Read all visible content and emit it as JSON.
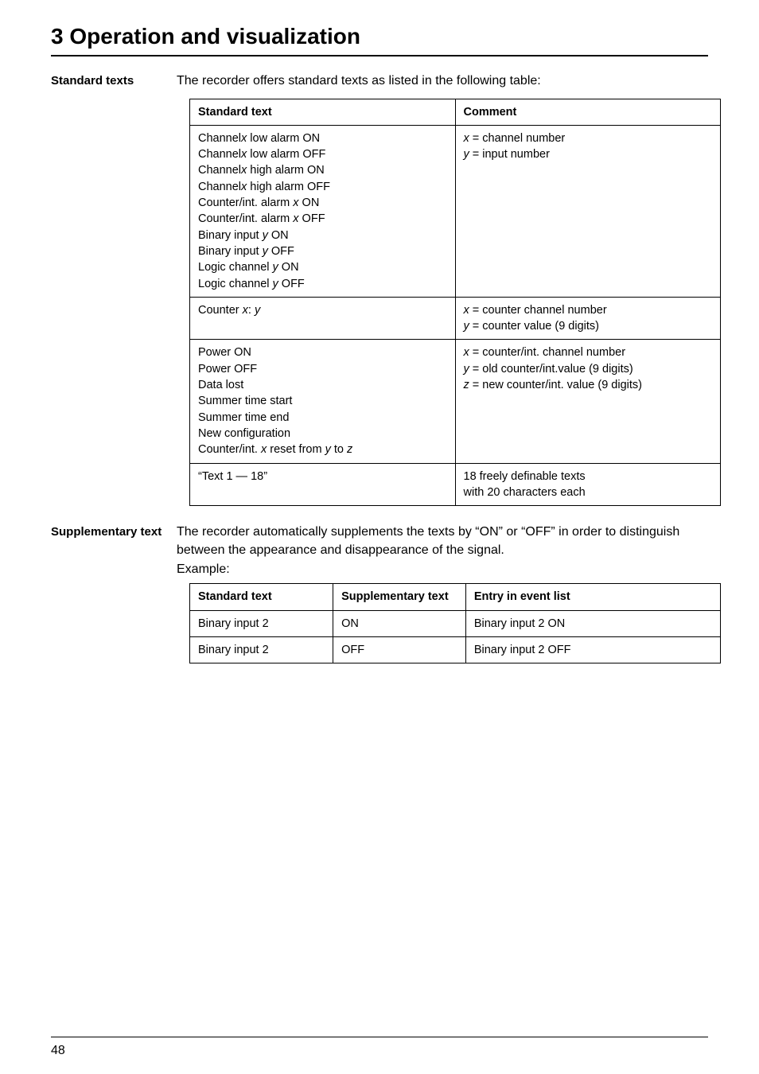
{
  "chapter_title": "3 Operation and visualization",
  "page_number": "48",
  "section1": {
    "side_label": "Standard texts",
    "intro": "The recorder offers standard texts as listed in the following table:",
    "table": {
      "headers": {
        "col1": "Standard text",
        "col2": "Comment"
      },
      "rows": [
        {
          "col1_lines": [
            {
              "prefix": "Channel",
              "var": "x",
              "suffix": " low alarm ON"
            },
            {
              "prefix": "Channel",
              "var": "x",
              "suffix": " low alarm OFF"
            },
            {
              "prefix": "Channel",
              "var": "x",
              "suffix": " high alarm ON"
            },
            {
              "prefix": "Channel",
              "var": "x",
              "suffix": " high alarm OFF"
            },
            {
              "prefix": "Counter/int. alarm ",
              "var": "x",
              "suffix": " ON"
            },
            {
              "prefix": "Counter/int. alarm ",
              "var": "x",
              "suffix": " OFF"
            },
            {
              "prefix": "Binary input ",
              "var": "y",
              "suffix": " ON"
            },
            {
              "prefix": "Binary input ",
              "var": "y",
              "suffix": " OFF"
            },
            {
              "prefix": "Logic channel ",
              "var": "y",
              "suffix": " ON"
            },
            {
              "prefix": "Logic channel ",
              "var": "y",
              "suffix": " OFF"
            }
          ],
          "col2_lines": [
            {
              "var": "x",
              "text": " = channel number"
            },
            {
              "var": "y",
              "text": " = input number"
            }
          ]
        },
        {
          "col1_lines": [
            {
              "prefix": "Counter ",
              "var": "x",
              "mid": ": ",
              "var2": "y"
            }
          ],
          "col2_lines": [
            {
              "var": "x",
              "text": " = counter channel number"
            },
            {
              "var": "y",
              "text": " = counter value (9 digits)"
            }
          ]
        },
        {
          "col1_lines": [
            {
              "prefix": "Power ON"
            },
            {
              "prefix": "Power OFF"
            },
            {
              "prefix": "Data lost"
            },
            {
              "prefix": "Summer time start"
            },
            {
              "prefix": "Summer time end"
            },
            {
              "prefix": "New configuration"
            },
            {
              "prefix": "Counter/int. ",
              "var": "x",
              "mid": " reset from ",
              "var2": "y",
              "mid2": " to ",
              "var3": "z"
            }
          ],
          "col2_lines": [
            {
              "var": "x",
              "text": " = counter/int. channel number"
            },
            {
              "var": "y",
              "text": " = old counter/int.value (9 digits)"
            },
            {
              "var": "z",
              "text": " = new counter/int. value (9 digits)"
            }
          ]
        },
        {
          "col1_lines": [
            {
              "prefix": "“Text 1 — 18”"
            }
          ],
          "col2_lines": [
            {
              "text": "18 freely definable texts"
            },
            {
              "text": "with 20 characters each"
            }
          ]
        }
      ]
    }
  },
  "section2": {
    "side_label": "Supplementary text",
    "intro": "The recorder automatically supplements the texts by “ON” or “OFF” in order to distinguish between the appearance and disappearance of the signal.",
    "example_label": "Example:",
    "table": {
      "headers": {
        "c1": "Standard text",
        "c2": "Supplementary text",
        "c3": "Entry in event list"
      },
      "rows": [
        {
          "c1": "Binary input 2",
          "c2": "ON",
          "c3": "Binary input 2 ON"
        },
        {
          "c1": "Binary input 2",
          "c2": "OFF",
          "c3": "Binary input 2 OFF"
        }
      ]
    }
  }
}
